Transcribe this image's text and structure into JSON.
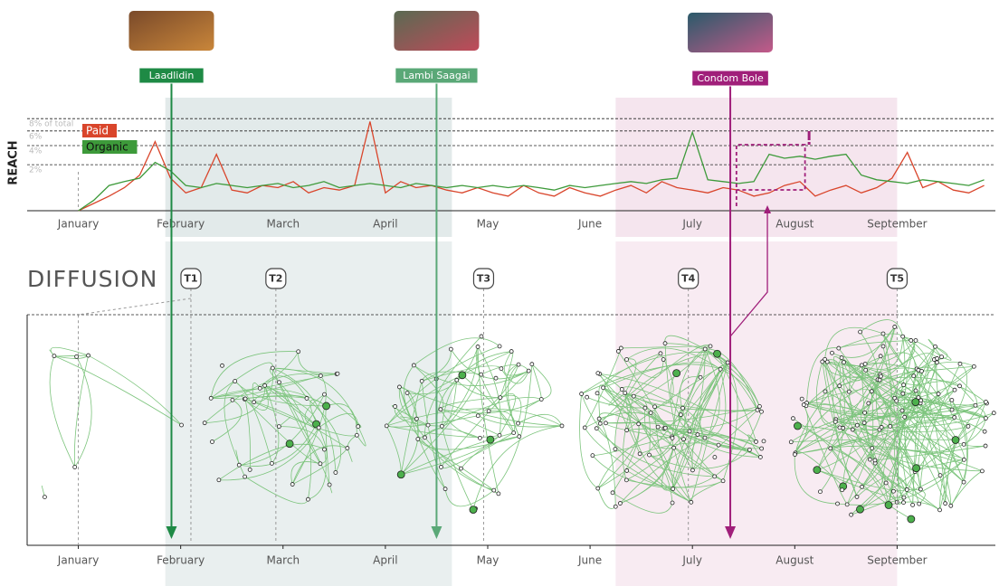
{
  "chart_data": {
    "type": "line",
    "y_label": "REACH",
    "section_title": "DIFFUSION",
    "y_scale": "sqrt",
    "ylim": [
      0,
      9
    ],
    "yticks": [
      {
        "value": 8,
        "label": "8% of total"
      },
      {
        "value": 6,
        "label": "6%"
      },
      {
        "value": 4,
        "label": "4%"
      },
      {
        "value": 2,
        "label": "2%"
      }
    ],
    "xlim": [
      -0.5,
      8.96
    ],
    "xticks": [
      {
        "value": 0,
        "label": "January"
      },
      {
        "value": 1,
        "label": "February"
      },
      {
        "value": 2,
        "label": "March"
      },
      {
        "value": 3,
        "label": "April"
      },
      {
        "value": 4,
        "label": "May"
      },
      {
        "value": 5,
        "label": "June"
      },
      {
        "value": 6,
        "label": "July"
      },
      {
        "value": 7,
        "label": "August"
      },
      {
        "value": 8,
        "label": "September"
      }
    ],
    "x": [
      0,
      0.15,
      0.3,
      0.45,
      0.6,
      0.75,
      0.9,
      1.05,
      1.2,
      1.35,
      1.5,
      1.65,
      1.8,
      1.95,
      2.1,
      2.25,
      2.4,
      2.55,
      2.7,
      2.85,
      3,
      3.15,
      3.3,
      3.45,
      3.6,
      3.75,
      3.9,
      4.05,
      4.2,
      4.35,
      4.5,
      4.65,
      4.8,
      4.95,
      5.1,
      5.25,
      5.4,
      5.55,
      5.7,
      5.85,
      6,
      6.15,
      6.3,
      6.45,
      6.6,
      6.75,
      6.9,
      7.05,
      7.2,
      7.35,
      7.5,
      7.65,
      7.8,
      7.95,
      8.1,
      8.25,
      8.4,
      8.55,
      8.7,
      8.85
    ],
    "series": [
      {
        "name": "Paid",
        "color": "#d9452b",
        "values": [
          0,
          0.05,
          0.2,
          0.5,
          1.2,
          4.5,
          1.0,
          0.3,
          0.5,
          3.0,
          0.4,
          0.3,
          0.6,
          0.5,
          0.8,
          0.3,
          0.5,
          0.4,
          0.6,
          7.5,
          0.3,
          0.8,
          0.5,
          0.6,
          0.4,
          0.3,
          0.5,
          0.3,
          0.2,
          0.6,
          0.3,
          0.2,
          0.5,
          0.3,
          0.2,
          0.4,
          0.6,
          0.3,
          0.8,
          0.5,
          0.4,
          0.3,
          0.5,
          0.4,
          0.2,
          0.3,
          0.6,
          0.8,
          0.2,
          0.4,
          0.6,
          0.3,
          0.5,
          1.0,
          3.2,
          0.5,
          0.8,
          0.4,
          0.3,
          0.6
        ]
      },
      {
        "name": "Organic",
        "color": "#3d9a3a",
        "values": [
          0,
          0.1,
          0.6,
          0.8,
          1.0,
          2.2,
          1.5,
          0.6,
          0.5,
          0.7,
          0.6,
          0.5,
          0.6,
          0.7,
          0.5,
          0.6,
          0.8,
          0.5,
          0.6,
          0.7,
          0.6,
          0.5,
          0.7,
          0.6,
          0.5,
          0.6,
          0.5,
          0.6,
          0.5,
          0.6,
          0.5,
          0.4,
          0.6,
          0.5,
          0.6,
          0.7,
          0.8,
          0.7,
          0.9,
          1.0,
          5.8,
          0.9,
          0.8,
          0.7,
          0.8,
          3.0,
          2.6,
          2.8,
          2.5,
          2.8,
          3.0,
          1.2,
          0.9,
          0.8,
          0.7,
          0.9,
          0.8,
          0.7,
          0.6,
          0.9
        ]
      }
    ],
    "periods": [
      {
        "start": 0.85,
        "end": 3.65,
        "color": "#cfdcdc"
      },
      {
        "start": 5.25,
        "end": 8.0,
        "color": "#efd3e2"
      }
    ],
    "events": [
      {
        "label": "Laadlidin",
        "x": 0.91,
        "color": "#1e8a45"
      },
      {
        "label": "Lambi Saagai",
        "x": 3.5,
        "color": "#5aa877"
      },
      {
        "label": "Condom Bole",
        "x": 6.37,
        "color": "#a01f7a"
      }
    ],
    "timepoints": [
      {
        "label": "T1",
        "x": 1.1
      },
      {
        "label": "T2",
        "x": 1.93
      },
      {
        "label": "T3",
        "x": 3.96
      },
      {
        "label": "T4",
        "x": 5.96
      },
      {
        "label": "T5",
        "x": 8.0
      }
    ]
  }
}
